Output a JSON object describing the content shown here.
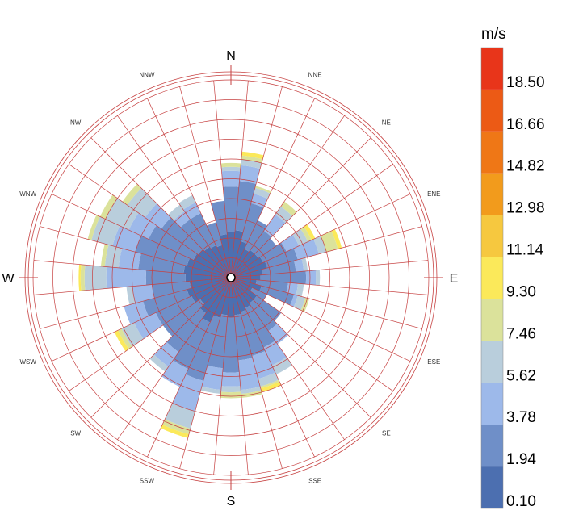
{
  "chart_data": {
    "type": "wind-rose",
    "unit": "m/s",
    "legend": {
      "title": "m/s",
      "ticks": [
        "0.10",
        "1.94",
        "3.78",
        "5.62",
        "7.46",
        "9.30",
        "11.14",
        "12.98",
        "14.82",
        "16.66",
        "18.50"
      ],
      "colors": [
        "#4c6fb0",
        "#6f8fc8",
        "#9db9ea",
        "#b9cedc",
        "#dbe29b",
        "#fbe95a",
        "#f6c83f",
        "#f29b1c",
        "#ef7716",
        "#ec5a15",
        "#e8351a"
      ]
    },
    "directions": [
      "N",
      "NNE",
      "NE",
      "ENE",
      "E",
      "ESE",
      "SE",
      "SSE",
      "S",
      "SSW",
      "SW",
      "WSW",
      "W",
      "WNW",
      "NW",
      "NNW"
    ],
    "sector_count": 36,
    "radius_max": 10,
    "sectors": [
      {
        "angle": 0,
        "values": [
          2.3,
          4.6,
          5.4,
          5.6,
          5.8
        ]
      },
      {
        "angle": 10,
        "values": [
          2.4,
          4.9,
          5.7,
          6.0,
          6.2,
          6.4
        ]
      },
      {
        "angle": 20,
        "values": [
          1.9,
          3.9,
          4.4,
          4.7,
          4.8
        ]
      },
      {
        "angle": 30,
        "values": [
          1.6,
          3.2
        ]
      },
      {
        "angle": 40,
        "values": [
          1.7,
          2.9,
          3.9,
          4.4,
          4.7
        ]
      },
      {
        "angle": 50,
        "values": [
          1.7,
          2.8
        ]
      },
      {
        "angle": 60,
        "values": [
          1.8,
          3.1,
          3.8,
          4.3,
          4.5,
          4.7
        ]
      },
      {
        "angle": 70,
        "values": [
          1.9,
          3.5,
          4.6,
          5.0,
          5.6,
          5.8
        ]
      },
      {
        "angle": 80,
        "values": [
          1.6,
          3.3,
          3.7,
          3.9
        ]
      },
      {
        "angle": 90,
        "values": [
          1.5,
          3.8,
          4.3,
          4.5
        ]
      },
      {
        "angle": 100,
        "values": [
          1.3,
          2.9,
          3.4,
          3.7
        ]
      },
      {
        "angle": 110,
        "values": [
          1.6,
          3.3,
          3.5,
          3.9,
          4.1
        ]
      },
      {
        "angle": 120,
        "values": [
          1.2,
          2.0
        ]
      },
      {
        "angle": 130,
        "values": [
          1.6,
          3.1
        ]
      },
      {
        "angle": 140,
        "values": [
          1.6,
          3.3,
          4.1
        ]
      },
      {
        "angle": 150,
        "values": [
          1.7,
          3.9,
          4.9,
          5.4
        ]
      },
      {
        "angle": 160,
        "values": [
          1.8,
          4.1,
          5.3,
          5.7,
          5.8,
          6.0
        ]
      },
      {
        "angle": 170,
        "values": [
          1.9,
          4.2,
          5.7,
          5.9,
          6.1
        ]
      },
      {
        "angle": 180,
        "values": [
          2.0,
          4.8,
          5.5,
          5.8,
          6.1
        ]
      },
      {
        "angle": 190,
        "values": [
          1.9,
          4.6,
          5.7,
          5.9
        ]
      },
      {
        "angle": 200,
        "values": [
          2.1,
          5.4,
          7.0,
          7.9,
          8.2,
          8.4
        ]
      },
      {
        "angle": 210,
        "values": [
          2.5,
          5.1,
          6.1
        ]
      },
      {
        "angle": 220,
        "values": [
          2.2,
          4.6,
          5.5,
          5.8
        ]
      },
      {
        "angle": 230,
        "values": [
          1.9,
          4.2
        ]
      },
      {
        "angle": 240,
        "values": [
          2.2,
          4.2,
          5.4,
          6.1,
          6.3,
          6.5
        ]
      },
      {
        "angle": 250,
        "values": [
          2.3,
          4.6,
          5.6
        ]
      },
      {
        "angle": 260,
        "values": [
          2.1,
          4.0,
          5.0,
          5.3
        ]
      },
      {
        "angle": 270,
        "values": [
          2.3,
          4.3,
          6.3,
          7.4,
          7.6,
          7.7
        ]
      },
      {
        "angle": 280,
        "values": [
          2.4,
          4.7,
          5.7,
          6.4,
          6.6
        ]
      },
      {
        "angle": 290,
        "values": [
          2.3,
          5.0,
          6.2,
          7.3,
          7.5
        ]
      },
      {
        "angle": 300,
        "values": [
          2.1,
          4.6,
          5.7,
          7.0,
          7.3
        ]
      },
      {
        "angle": 310,
        "values": [
          2.0,
          4.3,
          5.3,
          6.4,
          6.7
        ]
      },
      {
        "angle": 320,
        "values": [
          1.9,
          3.6,
          4.1,
          4.5
        ]
      },
      {
        "angle": 330,
        "values": [
          1.8,
          3.6,
          4.2,
          4.6
        ]
      },
      {
        "angle": 340,
        "values": [
          1.7,
          2.9
        ]
      },
      {
        "angle": 350,
        "values": [
          2.2,
          3.9
        ]
      }
    ]
  }
}
